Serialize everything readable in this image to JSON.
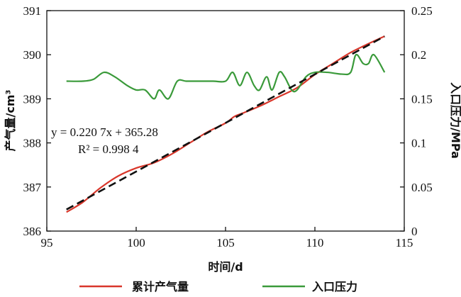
{
  "chart_data": {
    "type": "line",
    "xlabel": "时间/d",
    "ylabel_left": "产气量/cm³",
    "ylabel_right": "入口压力/MPa",
    "xlim": [
      95,
      115
    ],
    "ylim_left": [
      386,
      391
    ],
    "ylim_right": [
      0,
      0.25
    ],
    "x_ticks": [
      95,
      100,
      105,
      110,
      115
    ],
    "y_left_ticks": [
      386,
      387,
      388,
      389,
      390,
      391
    ],
    "y_right_ticks": [
      0,
      0.05,
      0.1,
      0.15,
      0.2,
      0.25
    ],
    "x_tick_labels": [
      "95",
      "100",
      "105",
      "110",
      "115"
    ],
    "y_left_tick_labels": [
      "386",
      "387",
      "388",
      "389",
      "390",
      "391"
    ],
    "y_right_tick_labels": [
      "0",
      "0.05",
      "0.1",
      "0.15",
      "0.2",
      "0.25"
    ],
    "grid": false,
    "legend_position": "bottom",
    "annotation": {
      "equation": "y = 0.220 7x + 365.28",
      "r_squared": "R² = 0.998 4"
    },
    "fit": {
      "slope": 0.2207,
      "intercept": 365.28,
      "x_range": [
        96.1,
        113.9
      ],
      "color": "#111111"
    },
    "series": [
      {
        "name": "累计产气量",
        "axis": "left",
        "color": "#d9372b",
        "x": [
          96.1,
          97.0,
          98.0,
          99.0,
          100.0,
          101.0,
          102.0,
          103.0,
          104.0,
          105.0,
          105.5,
          106.0,
          107.0,
          108.0,
          109.0,
          110.0,
          111.0,
          112.0,
          113.0,
          113.9
        ],
        "y": [
          386.43,
          386.65,
          386.98,
          387.25,
          387.43,
          387.55,
          387.75,
          388.0,
          388.25,
          388.45,
          388.6,
          388.68,
          388.85,
          389.05,
          389.25,
          389.55,
          389.8,
          390.05,
          390.25,
          390.42
        ]
      },
      {
        "name": "入口压力",
        "axis": "right",
        "color": "#3a9a3a",
        "x": [
          96.1,
          97.0,
          97.6,
          98.2,
          98.8,
          99.5,
          100.0,
          100.5,
          101.0,
          101.3,
          101.8,
          102.3,
          102.8,
          103.5,
          104.3,
          105.0,
          105.4,
          105.8,
          106.2,
          106.6,
          106.9,
          107.3,
          107.6,
          108.0,
          108.3,
          108.7,
          109.0,
          109.5,
          110.0,
          110.7,
          111.5,
          112.0,
          112.3,
          112.7,
          113.0,
          113.3,
          113.9
        ],
        "y": [
          0.17,
          0.17,
          0.172,
          0.18,
          0.175,
          0.165,
          0.16,
          0.16,
          0.15,
          0.16,
          0.15,
          0.17,
          0.17,
          0.17,
          0.17,
          0.17,
          0.18,
          0.165,
          0.18,
          0.165,
          0.16,
          0.175,
          0.16,
          0.18,
          0.175,
          0.16,
          0.16,
          0.175,
          0.18,
          0.18,
          0.178,
          0.18,
          0.2,
          0.19,
          0.19,
          0.2,
          0.18
        ]
      }
    ]
  }
}
